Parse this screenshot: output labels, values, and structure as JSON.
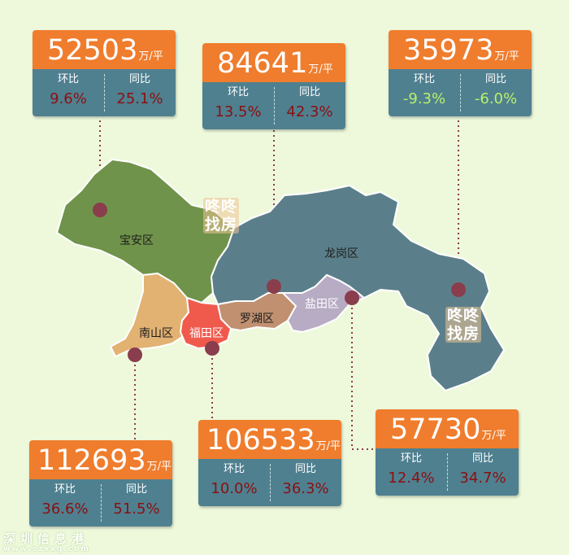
{
  "colors": {
    "background": "#eef9dc",
    "price_band": "#ef7d2d",
    "stats_band": "#4f8090",
    "up": "#8a1010",
    "down": "#b9f06a",
    "baoan": "#6f934a",
    "longgang": "#5b7f8a",
    "nanshan": "#e2b273",
    "futian": "#ef5a4d",
    "luohu": "#c09070",
    "yantian": "#b8abc4",
    "marker": "#8a3d4c"
  },
  "labels": {
    "mom": "环比",
    "yoy": "同比",
    "unit": "万/平"
  },
  "districts": {
    "baoan": "宝安区",
    "longgang": "龙岗区",
    "nanshan": "南山区",
    "futian": "福田区",
    "luohu": "罗湖区",
    "yantian": "盐田区"
  },
  "cards": [
    {
      "id": "baoan",
      "price": "52503",
      "mom": "9.6%",
      "yoy": "25.1%",
      "mom_trend": "up",
      "yoy_trend": "up"
    },
    {
      "id": "luohu",
      "price": "84641",
      "mom": "13.5%",
      "yoy": "42.3%",
      "mom_trend": "up",
      "yoy_trend": "up"
    },
    {
      "id": "longgang",
      "price": "35973",
      "mom": "-9.3%",
      "yoy": "-6.0%",
      "mom_trend": "down",
      "yoy_trend": "down"
    },
    {
      "id": "nanshan",
      "price": "112693",
      "mom": "36.6%",
      "yoy": "51.5%",
      "mom_trend": "up",
      "yoy_trend": "up"
    },
    {
      "id": "futian",
      "price": "106533",
      "mom": "10.0%",
      "yoy": "36.3%",
      "mom_trend": "up",
      "yoy_trend": "up"
    },
    {
      "id": "yantian",
      "price": "57730",
      "mom": "12.4%",
      "yoy": "34.7%",
      "mom_trend": "up",
      "yoy_trend": "up"
    }
  ],
  "stamp": {
    "line1": "咚咚",
    "line2": "找房"
  },
  "watermark": {
    "cn": "深圳信息港",
    "url": "www.szxxg.com"
  }
}
